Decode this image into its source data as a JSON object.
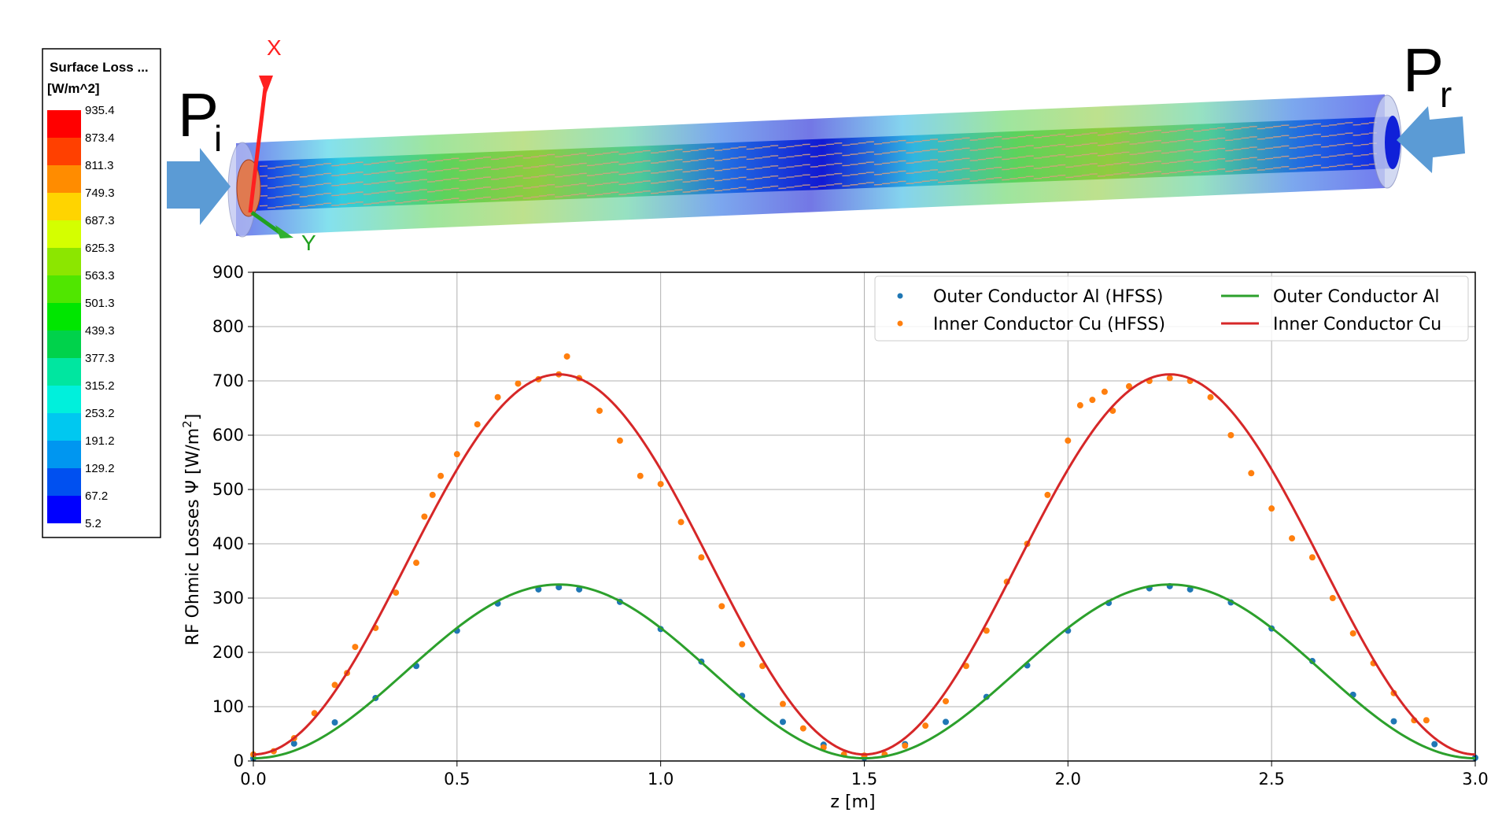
{
  "colorbar": {
    "title": "Surface Loss ...",
    "unit": "[W/m^2]",
    "ticks": [
      "935.4",
      "873.4",
      "811.3",
      "749.3",
      "687.3",
      "625.3",
      "563.3",
      "501.3",
      "439.3",
      "377.3",
      "315.2",
      "253.2",
      "191.2",
      "129.2",
      "67.2",
      "5.2"
    ],
    "colors": [
      "#ff0000",
      "#ff4000",
      "#ff8c00",
      "#ffd400",
      "#d4ff00",
      "#8ce600",
      "#50e600",
      "#00e600",
      "#00d24b",
      "#00e6a0",
      "#00f0dc",
      "#00c8f0",
      "#0096f0",
      "#0050f0",
      "#0000ff"
    ]
  },
  "model_labels": {
    "p_input": "P",
    "p_input_sub": "i",
    "p_reflected": "P",
    "p_reflected_sub": "r",
    "axis_x": "X",
    "axis_y": "Y"
  },
  "chart_data": {
    "type": "line",
    "xlabel": "z [m]",
    "ylabel_prefix": "RF Ohmic Losses Ψ [W/m",
    "ylabel_sup": "2",
    "ylabel_suffix": "]",
    "xlim": [
      0,
      3.0
    ],
    "ylim": [
      0,
      900
    ],
    "xticks": [
      0.0,
      0.5,
      1.0,
      1.5,
      2.0,
      2.5,
      3.0
    ],
    "xtick_labels": [
      "0.0",
      "0.5",
      "1.0",
      "1.5",
      "2.0",
      "2.5",
      "3.0"
    ],
    "yticks": [
      0,
      100,
      200,
      300,
      400,
      500,
      600,
      700,
      800,
      900
    ],
    "ytick_labels": [
      "0",
      "100",
      "200",
      "300",
      "400",
      "500",
      "600",
      "700",
      "800",
      "900"
    ],
    "grid": true,
    "legend_position": "top-right",
    "series": [
      {
        "name": "Outer Conductor Al (HFSS)",
        "kind": "scatter",
        "color": "#1f77b4",
        "x": [
          0.0,
          0.1,
          0.2,
          0.3,
          0.4,
          0.5,
          0.6,
          0.7,
          0.75,
          0.8,
          0.9,
          1.0,
          1.1,
          1.2,
          1.3,
          1.4,
          1.5,
          1.6,
          1.7,
          1.8,
          1.9,
          2.0,
          2.1,
          2.2,
          2.25,
          2.3,
          2.4,
          2.5,
          2.6,
          2.7,
          2.8,
          2.9,
          3.0
        ],
        "y": [
          5,
          32,
          71,
          116,
          175,
          240,
          290,
          316,
          320,
          316,
          293,
          243,
          183,
          120,
          72,
          30,
          6,
          31,
          72,
          118,
          176,
          240,
          291,
          318,
          322,
          316,
          292,
          244,
          184,
          122,
          73,
          31,
          6
        ]
      },
      {
        "name": "Inner Conductor Cu (HFSS)",
        "kind": "scatter",
        "color": "#ff7f0e",
        "x": [
          0.0,
          0.05,
          0.1,
          0.15,
          0.2,
          0.23,
          0.25,
          0.3,
          0.35,
          0.4,
          0.42,
          0.44,
          0.46,
          0.5,
          0.55,
          0.6,
          0.65,
          0.7,
          0.75,
          0.77,
          0.8,
          0.85,
          0.9,
          0.95,
          1.0,
          1.05,
          1.1,
          1.15,
          1.2,
          1.25,
          1.3,
          1.35,
          1.4,
          1.45,
          1.5,
          1.55,
          1.6,
          1.65,
          1.7,
          1.75,
          1.8,
          1.85,
          1.9,
          1.95,
          2.0,
          2.03,
          2.06,
          2.09,
          2.11,
          2.15,
          2.2,
          2.25,
          2.3,
          2.35,
          2.4,
          2.45,
          2.5,
          2.55,
          2.6,
          2.65,
          2.7,
          2.75,
          2.8,
          2.85,
          2.88
        ],
        "y": [
          12,
          18,
          42,
          88,
          140,
          162,
          210,
          245,
          310,
          365,
          450,
          490,
          525,
          565,
          620,
          670,
          695,
          703,
          712,
          745,
          705,
          645,
          590,
          525,
          510,
          440,
          375,
          285,
          215,
          175,
          105,
          60,
          25,
          12,
          10,
          12,
          28,
          65,
          110,
          175,
          240,
          330,
          400,
          490,
          590,
          655,
          665,
          680,
          645,
          690,
          700,
          705,
          700,
          670,
          600,
          530,
          465,
          410,
          375,
          300,
          235,
          180,
          125,
          75,
          75
        ]
      },
      {
        "name": "Outer Conductor Al",
        "kind": "line",
        "color": "#2ca02c",
        "peak": 325,
        "floor": 5,
        "period": 1.5,
        "phase": 0.75
      },
      {
        "name": "Inner Conductor Cu",
        "kind": "line",
        "color": "#d62728",
        "peak": 712,
        "floor": 12,
        "period": 1.5,
        "phase": 0.75
      }
    ]
  }
}
